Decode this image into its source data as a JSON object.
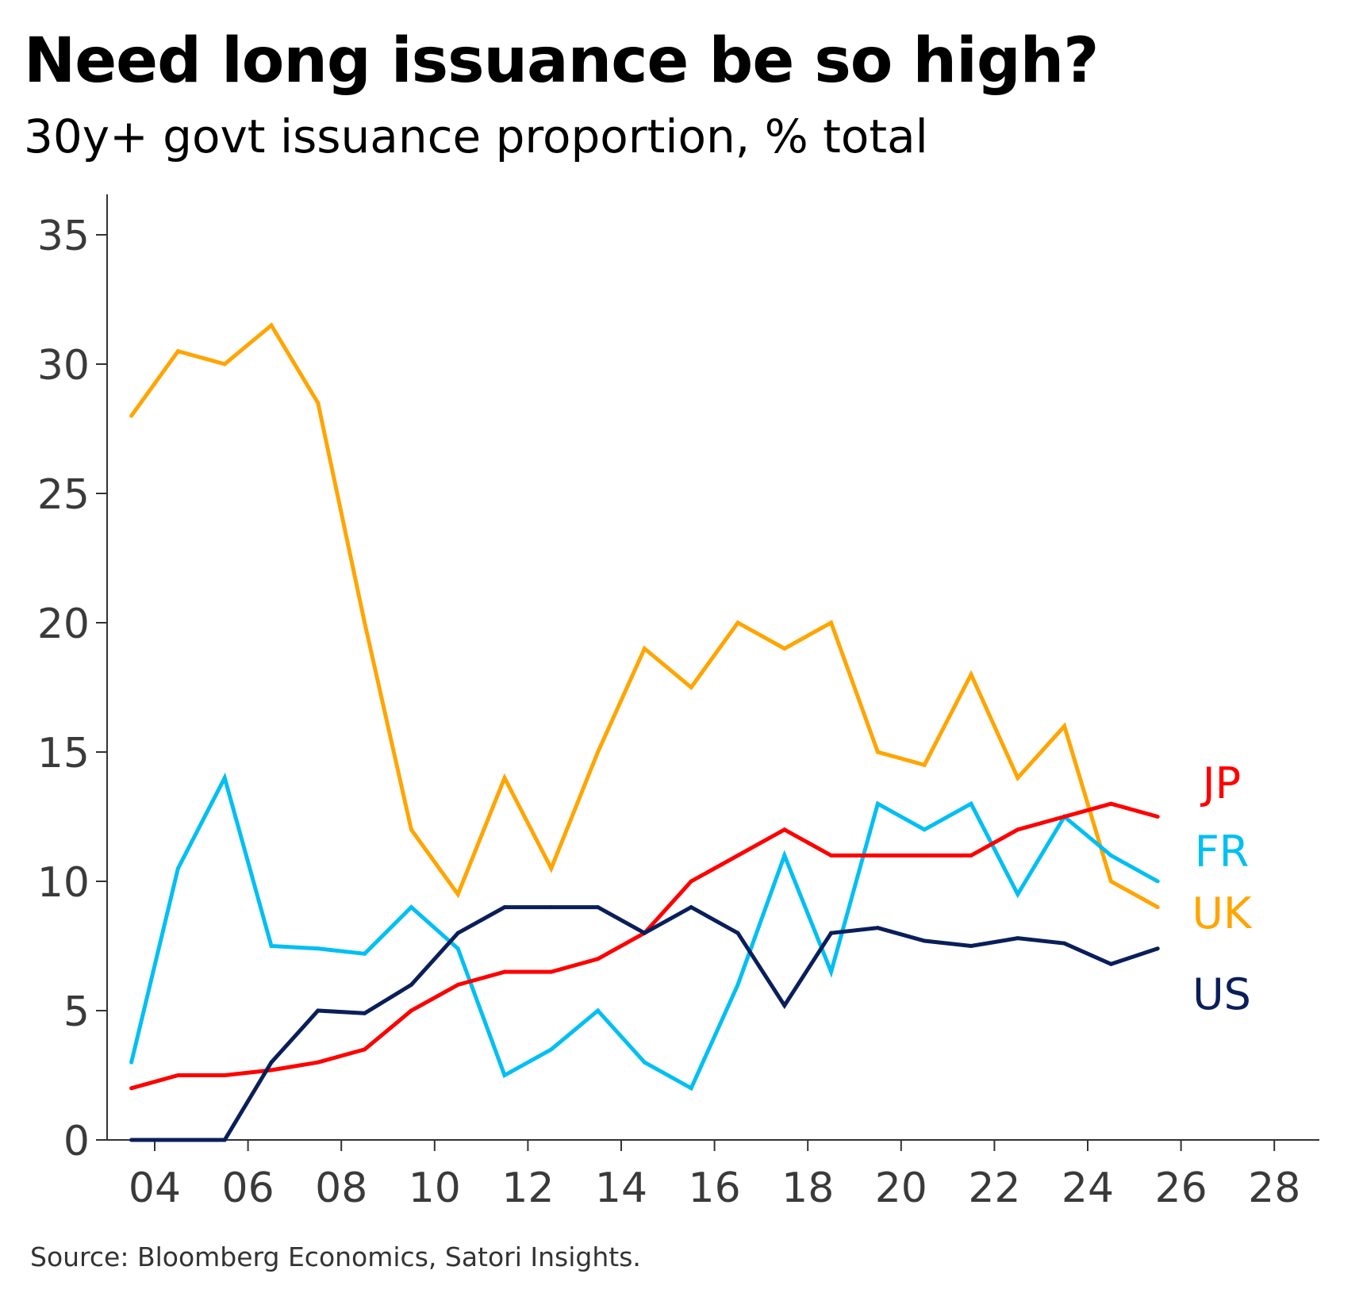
{
  "chart_data": {
    "type": "line",
    "title": "Need long issuance be so high?",
    "subtitle": "30y+ govt issuance proportion, % total",
    "source": "Source: Bloomberg Economics, Satori Insights.",
    "xlabel": "",
    "ylabel": "",
    "xlim": [
      2003,
      2029
    ],
    "ylim": [
      0,
      36
    ],
    "x_ticks": [
      4,
      6,
      8,
      10,
      12,
      14,
      16,
      18,
      20,
      22,
      24,
      26,
      28
    ],
    "x_tick_labels": [
      "04",
      "06",
      "08",
      "10",
      "12",
      "14",
      "16",
      "18",
      "20",
      "22",
      "24",
      "26",
      "28"
    ],
    "y_ticks": [
      0,
      5,
      10,
      15,
      20,
      25,
      30,
      35
    ],
    "y_tick_labels": [
      "0",
      "5",
      "10",
      "15",
      "20",
      "25",
      "30",
      "35"
    ],
    "grid": false,
    "x": [
      2003.5,
      2004.5,
      2005.5,
      2006.5,
      2007.5,
      2008.5,
      2009.5,
      2010.5,
      2011.5,
      2012.5,
      2013.5,
      2014.5,
      2015.5,
      2016.5,
      2017.5,
      2018.5,
      2019.5,
      2020.5,
      2021.5,
      2022.5,
      2023.5,
      2024.5,
      2025.5
    ],
    "series": [
      {
        "name": "UK",
        "color": "#FFA500",
        "values": [
          28,
          30.5,
          30,
          31.5,
          28.5,
          20,
          12,
          9.5,
          14,
          10.5,
          15,
          19,
          17.5,
          20,
          19,
          20,
          15,
          14.5,
          18,
          14,
          16,
          10,
          9
        ]
      },
      {
        "name": "FR",
        "color": "#00BFF3",
        "values": [
          3,
          10.5,
          14,
          7.5,
          7.4,
          7.2,
          9,
          7.4,
          2.5,
          3.5,
          5,
          3,
          2,
          6,
          11,
          6.5,
          13,
          12,
          13,
          9.5,
          12.5,
          11,
          10
        ]
      },
      {
        "name": "JP",
        "color": "#FF0000",
        "values": [
          2,
          2.5,
          2.5,
          2.7,
          3,
          3.5,
          5,
          6,
          6.5,
          6.5,
          7,
          8,
          10,
          11,
          12,
          11,
          11,
          11,
          11,
          12,
          12.5,
          13,
          12.5
        ]
      },
      {
        "name": "US",
        "color": "#0A1E5A",
        "values": [
          0,
          0,
          0,
          3,
          5,
          4.9,
          6,
          8,
          9,
          9,
          9,
          8,
          9,
          8,
          5.2,
          8,
          8.2,
          7.7,
          7.5,
          7.8,
          7.6,
          6.8,
          7.4
        ]
      }
    ]
  }
}
